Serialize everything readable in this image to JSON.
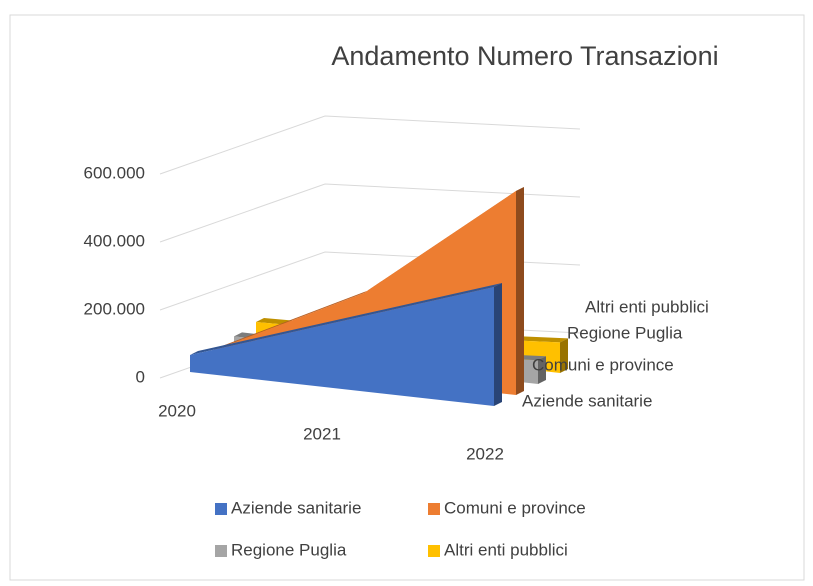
{
  "chart_data": {
    "type": "area3d",
    "title": "Andamento Numero Transazioni",
    "categories": [
      "2020",
      "2021",
      "2022"
    ],
    "series": [
      {
        "name": "Aziende sanitarie",
        "color": "#4472c4",
        "values": [
          50000,
          200000,
          350000
        ]
      },
      {
        "name": "Comuni e province",
        "color": "#ed7d31",
        "values": [
          30000,
          250000,
          600000
        ]
      },
      {
        "name": "Regione Puglia",
        "color": "#a5a5a5",
        "values": [
          40000,
          40000,
          70000
        ]
      },
      {
        "name": "Altri enti pubblici",
        "color": "#ffc000",
        "values": [
          50000,
          60000,
          90000
        ]
      }
    ],
    "ylim": [
      0,
      800000
    ],
    "yticks": [
      0,
      {
        "value": 200000,
        "label": "200.000"
      },
      {
        "value": 400000,
        "label": "400.000"
      },
      {
        "value": 600000,
        "label": "600.000"
      }
    ],
    "grid": true,
    "legend": "bottom"
  }
}
